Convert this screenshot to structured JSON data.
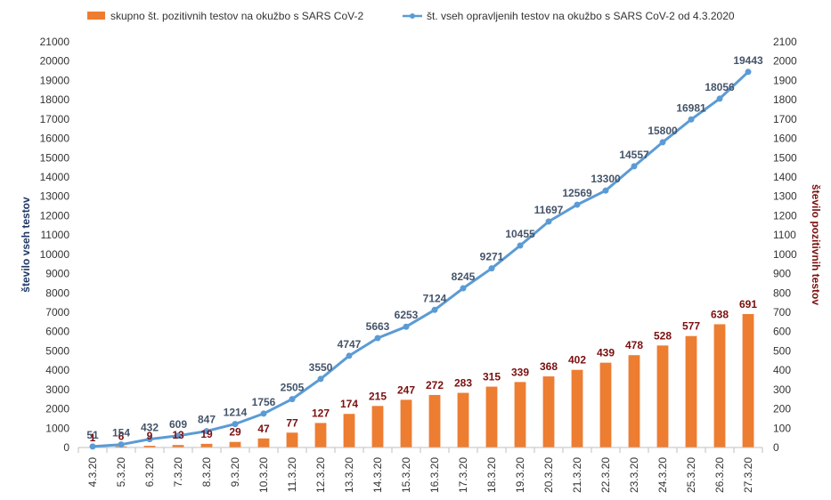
{
  "chart_data": {
    "type": "bar+line",
    "categories": [
      "4.3.20",
      "5.3.20",
      "6.3.20",
      "7.3.20",
      "8.3.20",
      "9.3.20",
      "10.3.20",
      "11.3.20",
      "12.3.20",
      "13.3.20",
      "14.3.20",
      "15.3.20",
      "16.3.20",
      "17.3.20",
      "18.3.20",
      "19.3.20",
      "20.3.20",
      "21.3.20",
      "22.3.20",
      "23.3.20",
      "24.3.20",
      "25.3.20",
      "26.3.20",
      "27.3.20"
    ],
    "series": [
      {
        "name": "skupno št. pozitivnih testov na okužbo s SARS CoV-2",
        "type": "bar",
        "axis": "right",
        "color": "#ed7d31",
        "label_color": "#7b0f0f",
        "values": [
          1,
          6,
          9,
          13,
          19,
          29,
          47,
          77,
          127,
          174,
          215,
          247,
          272,
          283,
          315,
          339,
          368,
          402,
          439,
          478,
          528,
          577,
          638,
          691
        ]
      },
      {
        "name": "št. vseh opravljenih testov na okužbo s SARS CoV-2 od 4.3.2020",
        "type": "line",
        "axis": "left",
        "color": "#5b9bd5",
        "label_color": "#44546a",
        "values": [
          51,
          154,
          432,
          609,
          847,
          1214,
          1756,
          2505,
          3550,
          4747,
          5663,
          6253,
          7124,
          8245,
          9271,
          10455,
          11697,
          12569,
          13300,
          14557,
          15800,
          16981,
          18056,
          19443
        ]
      }
    ],
    "y_left": {
      "label": "število vseh testov",
      "min": 0,
      "max": 21000,
      "step": 1000,
      "color": "#1f3864"
    },
    "y_right": {
      "label": "število pozitivnih testov",
      "min": 0,
      "max": 2100,
      "step": 100,
      "color": "#7b0f0f"
    },
    "legend_position": "top",
    "grid": false
  }
}
